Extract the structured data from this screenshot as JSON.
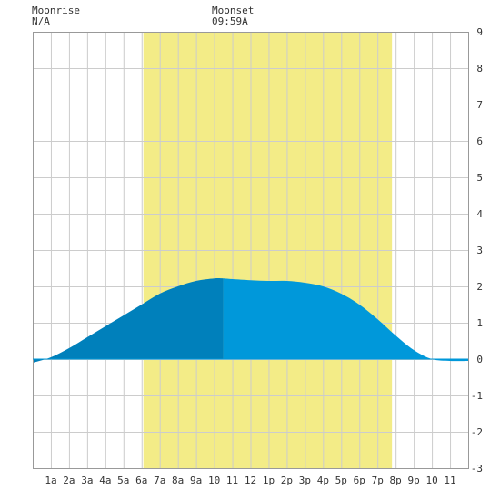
{
  "moonrise": {
    "title": "Moonrise",
    "value": "N/A"
  },
  "moonset": {
    "title": "Moonset",
    "value": "09:59A"
  },
  "colors": {
    "daylight": "#f3ec87",
    "tide_past": "#0080bb",
    "tide_future": "#0098da",
    "grid": "#cccccc",
    "axis": "#333333"
  },
  "chart_data": {
    "type": "area",
    "title": "",
    "xlabel": "",
    "ylabel": "",
    "xlim": [
      0,
      24
    ],
    "ylim": [
      -3,
      9
    ],
    "grid": true,
    "x_tick_labels": [
      "1a",
      "2a",
      "3a",
      "4a",
      "5a",
      "6a",
      "7a",
      "8a",
      "9a",
      "10",
      "11",
      "12",
      "1p",
      "2p",
      "3p",
      "4p",
      "5p",
      "6p",
      "7p",
      "8p",
      "9p",
      "10",
      "11"
    ],
    "y_tick_labels": [
      "9",
      "8",
      "7",
      "6",
      "5",
      "4",
      "3",
      "2",
      "1",
      "0",
      "-1",
      "-2",
      "-3"
    ],
    "daylight_hours": [
      6.1,
      19.8
    ],
    "current_time_hour": 10.5,
    "series": [
      {
        "x": [
          0,
          1,
          2,
          3,
          4,
          5,
          6,
          7,
          8,
          9,
          10,
          10.5,
          11,
          12,
          13,
          14,
          15,
          16,
          17,
          18,
          19,
          20,
          21,
          22,
          23,
          24
        ],
        "values": [
          -0.1,
          0.05,
          0.3,
          0.6,
          0.9,
          1.2,
          1.5,
          1.8,
          2.0,
          2.15,
          2.22,
          2.22,
          2.2,
          2.17,
          2.15,
          2.15,
          2.1,
          2.0,
          1.8,
          1.5,
          1.1,
          0.65,
          0.25,
          0.0,
          -0.05,
          -0.05
        ]
      }
    ]
  }
}
